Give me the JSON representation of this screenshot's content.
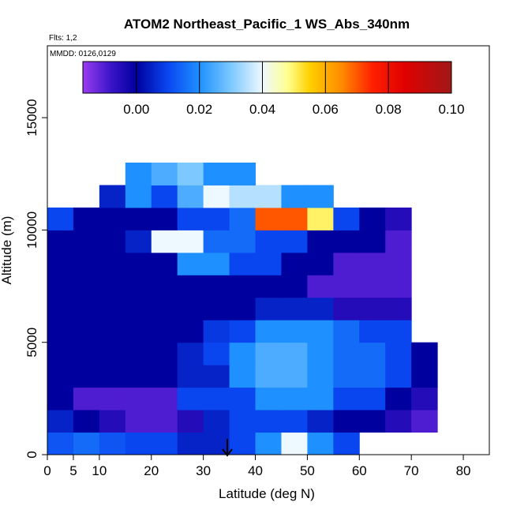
{
  "chart_data": {
    "type": "heatmap",
    "title": "ATOM2 Northeast_Pacific_1 WS_Abs_340nm",
    "subtitle": "Flts: 1,2",
    "annotation": "MMDD: 0126,0129",
    "x_label": "Latitude (deg N)",
    "y_label": "Altitude (m)",
    "xlim": [
      0,
      85
    ],
    "ylim": [
      0,
      18200
    ],
    "xticks": [
      0,
      5,
      10,
      20,
      30,
      40,
      50,
      60,
      70,
      80
    ],
    "yticks": [
      0,
      5000,
      10000,
      15000
    ],
    "x_edges": [
      0,
      5,
      10,
      15,
      20,
      25,
      30,
      35,
      40,
      45,
      50,
      55,
      60,
      65,
      70,
      75
    ],
    "y_edges": [
      0,
      1000,
      2000,
      3000,
      4000,
      5000,
      6000,
      7000,
      8000,
      9000,
      10000,
      11000,
      12000,
      13000
    ],
    "z": [
      [
        0.012,
        0.015,
        0.012,
        0.01,
        0.01,
        0.005,
        0.005,
        0.01,
        0.02,
        0.04,
        0.02,
        0.01,
        null,
        null,
        null
      ],
      [
        0.005,
        0.0,
        -0.005,
        -0.01,
        -0.01,
        -0.005,
        0.005,
        0.01,
        0.01,
        0.01,
        0.005,
        0.0,
        0.0,
        -0.005,
        -0.01
      ],
      [
        0.0,
        -0.01,
        -0.01,
        -0.01,
        -0.01,
        0.01,
        0.01,
        0.01,
        0.02,
        0.02,
        0.02,
        0.01,
        0.01,
        0.0,
        -0.005
      ],
      [
        0.0,
        0.0,
        0.0,
        0.0,
        0.0,
        0.005,
        0.005,
        0.02,
        0.025,
        0.025,
        0.02,
        0.015,
        0.015,
        0.01,
        0.0
      ],
      [
        0.0,
        0.0,
        0.0,
        0.0,
        0.0,
        0.005,
        0.01,
        0.02,
        0.025,
        0.025,
        0.02,
        0.015,
        0.015,
        0.01,
        0.0
      ],
      [
        0.0,
        0.0,
        0.0,
        0.0,
        0.0,
        0.0,
        0.008,
        0.01,
        0.02,
        0.02,
        0.02,
        0.015,
        0.01,
        0.01,
        null
      ],
      [
        0.0,
        0.0,
        0.0,
        0.0,
        0.0,
        0.0,
        0.0,
        0.0,
        0.005,
        0.005,
        0.005,
        -0.005,
        -0.005,
        -0.005,
        null
      ],
      [
        0.0,
        0.0,
        0.0,
        0.0,
        0.0,
        0.0,
        0.0,
        0.0,
        0.0,
        0.0,
        -0.01,
        -0.01,
        -0.01,
        -0.01,
        null
      ],
      [
        0.0,
        0.0,
        0.0,
        0.0,
        0.0,
        0.02,
        0.02,
        0.01,
        0.01,
        0.0,
        0.0,
        -0.01,
        -0.01,
        -0.01,
        null
      ],
      [
        0.0,
        0.0,
        0.0,
        0.005,
        0.04,
        0.04,
        0.015,
        0.015,
        0.01,
        0.01,
        0.0,
        0.0,
        0.0,
        -0.01,
        null
      ],
      [
        0.01,
        0.0,
        0.0,
        0.0,
        0.0,
        0.01,
        0.01,
        0.015,
        0.07,
        0.07,
        0.05,
        0.01,
        0.0,
        -0.005,
        null
      ],
      [
        null,
        null,
        0.005,
        0.02,
        0.01,
        0.025,
        0.04,
        0.035,
        0.035,
        0.02,
        0.02,
        null,
        null,
        null,
        null
      ],
      [
        null,
        null,
        null,
        0.02,
        0.025,
        0.03,
        0.02,
        0.02,
        null,
        null,
        null,
        null,
        null,
        null,
        null
      ]
    ],
    "colorbar_lim": [
      -0.017,
      0.1
    ],
    "colorbar_ticks": [
      {
        "value": 0,
        "label": "0.00"
      },
      {
        "value": 0.02,
        "label": "0.02"
      },
      {
        "value": 0.04,
        "label": "0.04"
      },
      {
        "value": 0.06,
        "label": "0.06"
      },
      {
        "value": 0.08,
        "label": "0.08"
      },
      {
        "value": 0.1,
        "label": "0.10"
      }
    ],
    "colorscale": [
      {
        "value": -0.017,
        "color": "#9a3cf0"
      },
      {
        "value": -0.008,
        "color": "#3a14c8"
      },
      {
        "value": 0.0,
        "color": "#00009e"
      },
      {
        "value": 0.01,
        "color": "#0a46f0"
      },
      {
        "value": 0.02,
        "color": "#1e90ff"
      },
      {
        "value": 0.03,
        "color": "#7cc8ff"
      },
      {
        "value": 0.04,
        "color": "#eef8ff"
      },
      {
        "value": 0.048,
        "color": "#ffff90"
      },
      {
        "value": 0.055,
        "color": "#ffd000"
      },
      {
        "value": 0.065,
        "color": "#ff8c00"
      },
      {
        "value": 0.075,
        "color": "#ff2000"
      },
      {
        "value": 0.085,
        "color": "#e00000"
      },
      {
        "value": 0.1,
        "color": "#a01818"
      }
    ]
  }
}
